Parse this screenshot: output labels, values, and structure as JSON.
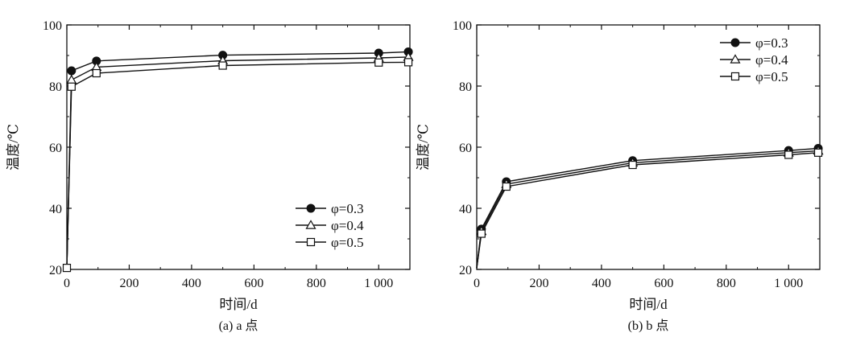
{
  "chart_data": [
    {
      "type": "line",
      "caption": "(a) a 点",
      "xlabel": "时间/d",
      "ylabel": "温度/℃",
      "xlim": [
        0,
        1100
      ],
      "ylim": [
        20,
        100
      ],
      "xticks": [
        0,
        200,
        400,
        600,
        800,
        1000
      ],
      "xtick_labels": [
        "0",
        "200",
        "400",
        "600",
        "800",
        "1 000"
      ],
      "yticks": [
        20,
        40,
        60,
        80,
        100
      ],
      "ytick_labels": [
        "20",
        "40",
        "60",
        "80",
        "100"
      ],
      "legend_position": "lower-right",
      "grid": false,
      "series": [
        {
          "name": "φ=0.3",
          "marker": "filled-circle",
          "x": [
            0,
            15,
            95,
            500,
            1000,
            1095
          ],
          "y": [
            20.5,
            85,
            88.2,
            90.1,
            90.8,
            91.2
          ]
        },
        {
          "name": "φ=0.4",
          "marker": "open-triangle",
          "x": [
            0,
            15,
            95,
            500,
            1000,
            1095
          ],
          "y": [
            20.5,
            82,
            86.2,
            88.3,
            89.2,
            89.5
          ]
        },
        {
          "name": "φ=0.5",
          "marker": "open-square",
          "x": [
            0,
            15,
            95,
            500,
            1000,
            1095
          ],
          "y": [
            20.5,
            79.8,
            84.2,
            86.7,
            87.7,
            87.8
          ]
        }
      ]
    },
    {
      "type": "line",
      "caption": "(b) b 点",
      "xlabel": "时间/d",
      "ylabel": "温度/℃",
      "xlim": [
        0,
        1100
      ],
      "ylim": [
        20,
        100
      ],
      "xticks": [
        0,
        200,
        400,
        600,
        800,
        1000
      ],
      "xtick_labels": [
        "0",
        "200",
        "400",
        "600",
        "800",
        "1 000"
      ],
      "yticks": [
        20,
        40,
        60,
        80,
        100
      ],
      "ytick_labels": [
        "20",
        "40",
        "60",
        "80",
        "100"
      ],
      "legend_position": "top-right",
      "grid": false,
      "series": [
        {
          "name": "φ=0.3",
          "marker": "filled-circle",
          "x": [
            0,
            15,
            95,
            500,
            1000,
            1095
          ],
          "y": [
            20.5,
            33.2,
            48.7,
            55.6,
            58.9,
            59.6
          ]
        },
        {
          "name": "φ=0.4",
          "marker": "open-triangle",
          "x": [
            0,
            15,
            95,
            500,
            1000,
            1095
          ],
          "y": [
            20.5,
            32.5,
            47.9,
            54.9,
            58.2,
            58.8
          ]
        },
        {
          "name": "φ=0.5",
          "marker": "open-square",
          "x": [
            0,
            15,
            95,
            500,
            1000,
            1095
          ],
          "y": [
            20.5,
            31.7,
            47.1,
            54.2,
            57.5,
            58.2
          ]
        }
      ]
    }
  ]
}
